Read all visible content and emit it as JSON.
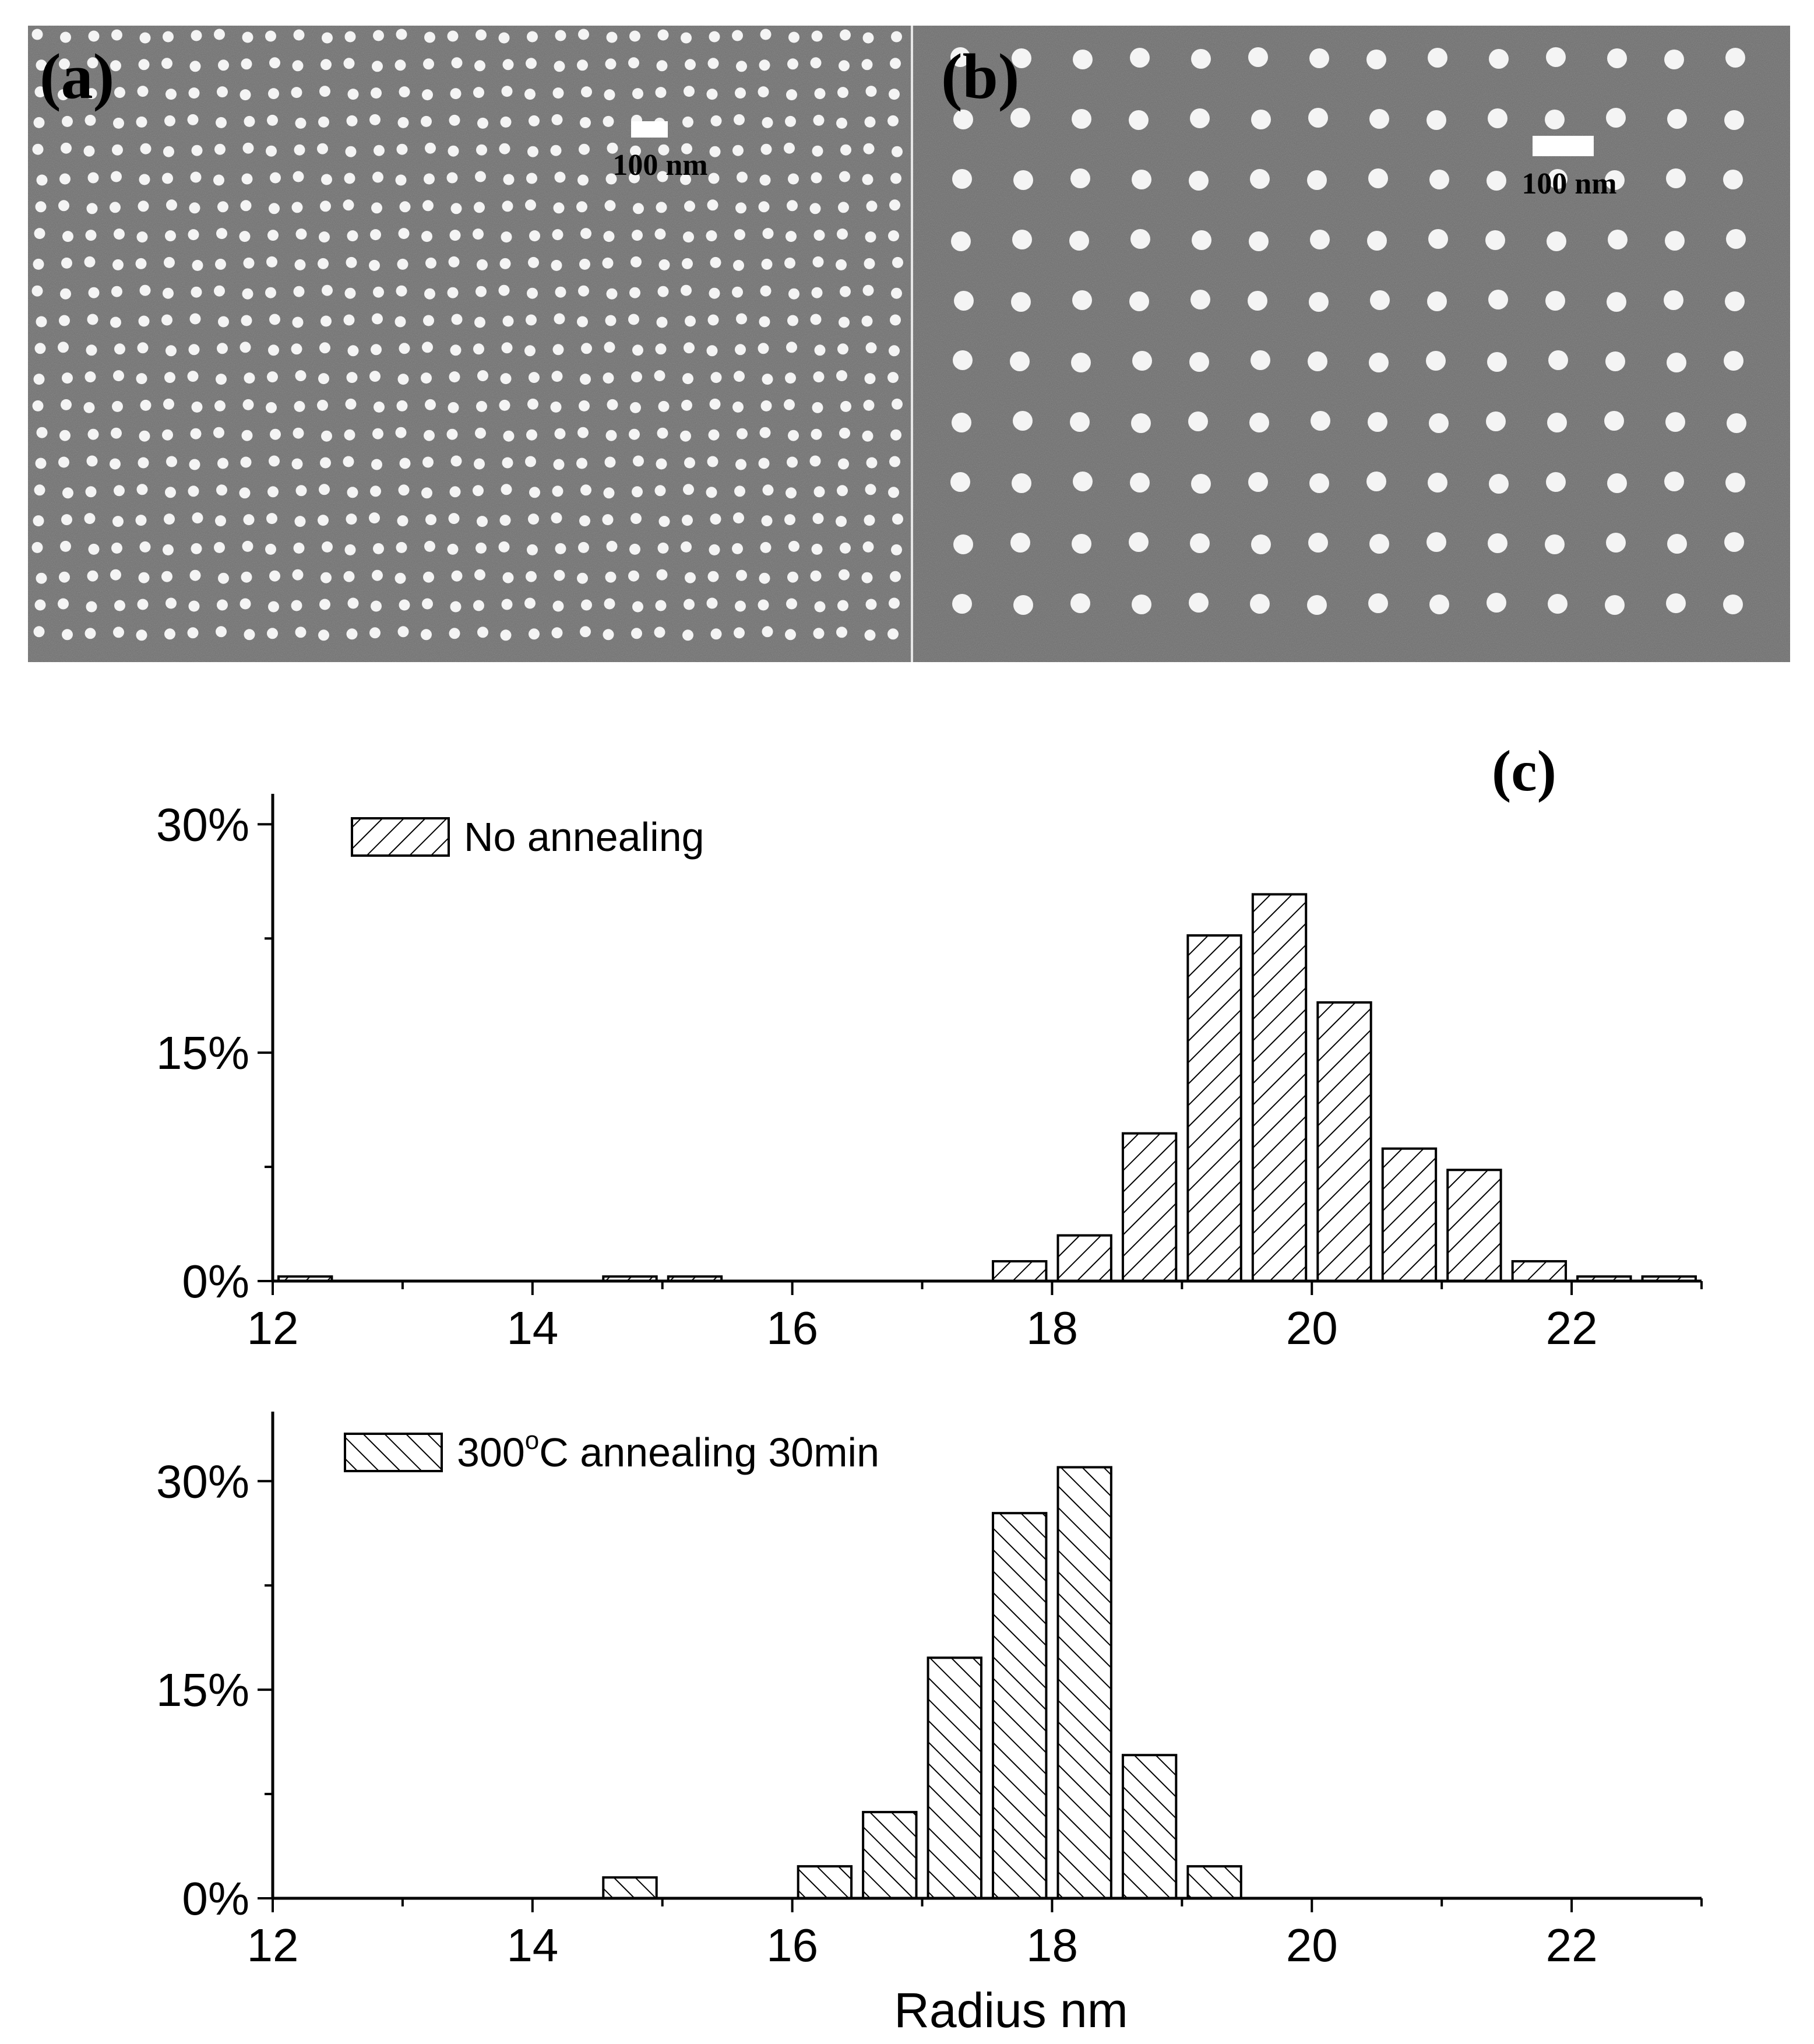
{
  "panels": {
    "a": {
      "label": "(a)",
      "scalebar": "100 nm",
      "description_free": true
    },
    "b": {
      "label": "(b)",
      "scalebar": "100 nm"
    },
    "c": {
      "label": "(c)"
    }
  },
  "colors": {
    "sem_background": "#6e6e6e",
    "sem_dot": "#f4f4f4",
    "axis": "#000000",
    "bar_fill": "#ffffff"
  },
  "chart_data": [
    {
      "type": "bar",
      "legend": "No annealing",
      "hatch": "forward",
      "xlim": [
        12,
        23
      ],
      "ylim": [
        0,
        32
      ],
      "xticks": [
        12,
        14,
        16,
        18,
        20,
        22
      ],
      "xtick_labels": [
        "12",
        "14",
        "16",
        "18",
        "20",
        "22"
      ],
      "yticks": [
        0,
        15,
        30
      ],
      "ytick_labels": [
        "0%",
        "15%",
        "30%"
      ],
      "bin_width": 0.5,
      "bars": [
        {
          "x": 12.25,
          "value": 0.3
        },
        {
          "x": 14.75,
          "value": 0.3
        },
        {
          "x": 15.25,
          "value": 0.3
        },
        {
          "x": 17.75,
          "value": 1.3
        },
        {
          "x": 18.25,
          "value": 3.0
        },
        {
          "x": 18.75,
          "value": 9.7
        },
        {
          "x": 19.25,
          "value": 22.7
        },
        {
          "x": 19.75,
          "value": 25.4
        },
        {
          "x": 20.25,
          "value": 18.3
        },
        {
          "x": 20.75,
          "value": 8.7
        },
        {
          "x": 21.25,
          "value": 7.3
        },
        {
          "x": 21.75,
          "value": 1.3
        },
        {
          "x": 22.25,
          "value": 0.3
        },
        {
          "x": 22.75,
          "value": 0.3
        }
      ]
    },
    {
      "type": "bar",
      "legend_prefix": "300",
      "legend_degree": "o",
      "legend_suffix": "C annealing 30min",
      "hatch": "backward",
      "xlabel": "Radius nm",
      "xlim": [
        12,
        23
      ],
      "ylim": [
        0,
        35
      ],
      "xticks": [
        12,
        14,
        16,
        18,
        20,
        22
      ],
      "xtick_labels": [
        "12",
        "14",
        "16",
        "18",
        "20",
        "22"
      ],
      "yticks": [
        0,
        15,
        30
      ],
      "ytick_labels": [
        "0%",
        "15%",
        "30%"
      ],
      "bin_width": 0.5,
      "bars": [
        {
          "x": 14.75,
          "value": 1.5
        },
        {
          "x": 16.25,
          "value": 2.3
        },
        {
          "x": 16.75,
          "value": 6.2
        },
        {
          "x": 17.25,
          "value": 17.3
        },
        {
          "x": 17.75,
          "value": 27.7
        },
        {
          "x": 18.25,
          "value": 31.0
        },
        {
          "x": 18.75,
          "value": 10.3
        },
        {
          "x": 19.25,
          "value": 2.3
        }
      ]
    }
  ]
}
